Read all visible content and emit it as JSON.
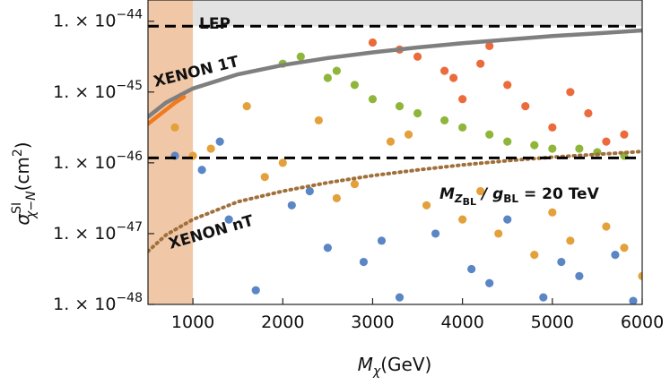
{
  "chart_data": {
    "type": "scatter",
    "xlabel": "M_χ(GeV)",
    "ylabel": "σ^SI_χ-N(cm²)",
    "xlim": [
      500,
      6000
    ],
    "ylim_log10": [
      -48,
      -43.7
    ],
    "log_y": true,
    "x_ticks": [
      1000,
      2000,
      3000,
      4000,
      5000,
      6000
    ],
    "y_ticks": [
      {
        "exp": -44,
        "mantissa": "1.",
        "base": "10",
        "sup": "−44"
      },
      {
        "exp": -45,
        "mantissa": "1.",
        "base": "10",
        "sup": "−45"
      },
      {
        "exp": -46,
        "mantissa": "1.",
        "base": "10",
        "sup": "−46"
      },
      {
        "exp": -47,
        "mantissa": "1.",
        "base": "10",
        "sup": "−47"
      },
      {
        "exp": -48,
        "mantissa": "1.",
        "base": "10",
        "sup": "−48"
      }
    ],
    "annotations": {
      "lep": "LEP",
      "xenon1t": "XENON 1T",
      "xenonnt": "XENON nT",
      "ratio_prefix": "M",
      "ratio_sub": "Z",
      "ratio_subsub": "BL",
      "ratio_mid": " / g",
      "ratio_sub2": "BL",
      "ratio_suffix": " = 20 TeV"
    },
    "shaded_regions": [
      {
        "name": "LEP",
        "x_max": 1000,
        "color": "#f0c8a8"
      },
      {
        "name": "excluded-top",
        "y_min_log10": -44.07,
        "color": "#e2e2e2"
      }
    ],
    "reference_lines": [
      {
        "log10_y": -44.07,
        "style": "dashed",
        "color": "#000000"
      },
      {
        "log10_y": -45.93,
        "style": "dashed",
        "color": "#000000"
      }
    ],
    "curves": [
      {
        "name": "XENON 1T",
        "color": "#7f7f7f",
        "style": "solid",
        "x": [
          500,
          700,
          1000,
          1500,
          2000,
          2500,
          3000,
          3500,
          4000,
          4500,
          5000,
          5500,
          6000
        ],
        "log10_y": [
          -45.35,
          -45.15,
          -44.95,
          -44.75,
          -44.62,
          -44.52,
          -44.44,
          -44.37,
          -44.31,
          -44.26,
          -44.21,
          -44.17,
          -44.13
        ]
      },
      {
        "name": "XENON 1T (low-mass)",
        "color": "#f07a1c",
        "style": "solid",
        "x": [
          500,
          600,
          700,
          800,
          900
        ],
        "log10_y": [
          -45.45,
          -45.35,
          -45.25,
          -45.15,
          -45.07
        ]
      },
      {
        "name": "XENON nT",
        "color": "#a0703a",
        "style": "dotted",
        "x": [
          500,
          700,
          1000,
          1500,
          2000,
          2500,
          3000,
          3500,
          4000,
          4500,
          5000,
          5500,
          6000
        ],
        "log10_y": [
          -47.25,
          -47.02,
          -46.8,
          -46.55,
          -46.4,
          -46.28,
          -46.18,
          -46.1,
          -46.03,
          -45.97,
          -45.92,
          -45.88,
          -45.84
        ]
      }
    ],
    "series_colors": {
      "blue": "#5a86c5",
      "yellow": "#e4a13b",
      "green": "#8fb63a",
      "red": "#ec6b3d"
    },
    "series": [
      {
        "color_key": "red",
        "x": [
          4200,
          3000,
          3500,
          5400,
          5200,
          4500,
          3800,
          4000,
          5000,
          3300,
          5800,
          4700,
          3900,
          5600,
          4300
        ],
        "log10_y": [
          -44.6,
          -44.3,
          -44.5,
          -45.3,
          -45.0,
          -44.9,
          -44.7,
          -45.1,
          -45.5,
          -44.4,
          -45.6,
          -45.2,
          -44.8,
          -45.7,
          -44.35
        ]
      },
      {
        "color_key": "green",
        "x": [
          2000,
          2500,
          3000,
          3500,
          4000,
          4500,
          5000,
          5500,
          2200,
          2800,
          3300,
          3800,
          4300,
          4800,
          5300,
          5800,
          2600
        ],
        "log10_y": [
          -44.6,
          -44.8,
          -45.1,
          -45.3,
          -45.5,
          -45.7,
          -45.8,
          -45.85,
          -44.5,
          -44.9,
          -45.2,
          -45.4,
          -45.6,
          -45.75,
          -45.8,
          -45.9,
          -44.7
        ]
      },
      {
        "color_key": "yellow",
        "x": [
          800,
          1200,
          1600,
          2000,
          2400,
          2800,
          3200,
          3600,
          4000,
          4400,
          4800,
          5200,
          5600,
          6000,
          1000,
          1800,
          2600,
          3400,
          4200,
          5000,
          5800
        ],
        "log10_y": [
          -45.5,
          -45.8,
          -45.2,
          -46.0,
          -45.4,
          -46.3,
          -45.7,
          -46.6,
          -46.8,
          -47.0,
          -47.3,
          -47.1,
          -46.9,
          -47.6,
          -45.9,
          -46.2,
          -46.5,
          -45.6,
          -46.4,
          -46.7,
          -47.2
        ]
      },
      {
        "color_key": "blue",
        "x": [
          800,
          1100,
          1400,
          1700,
          2100,
          2500,
          2900,
          3300,
          3700,
          4100,
          4500,
          4900,
          5300,
          5700,
          5900,
          1300,
          2300,
          3100,
          4300,
          5100
        ],
        "log10_y": [
          -45.9,
          -46.1,
          -46.8,
          -47.8,
          -46.6,
          -47.2,
          -47.4,
          -47.9,
          -47.0,
          -47.5,
          -46.8,
          -47.9,
          -47.6,
          -47.3,
          -47.95,
          -45.7,
          -46.4,
          -47.1,
          -47.7,
          -47.4
        ]
      }
    ]
  }
}
